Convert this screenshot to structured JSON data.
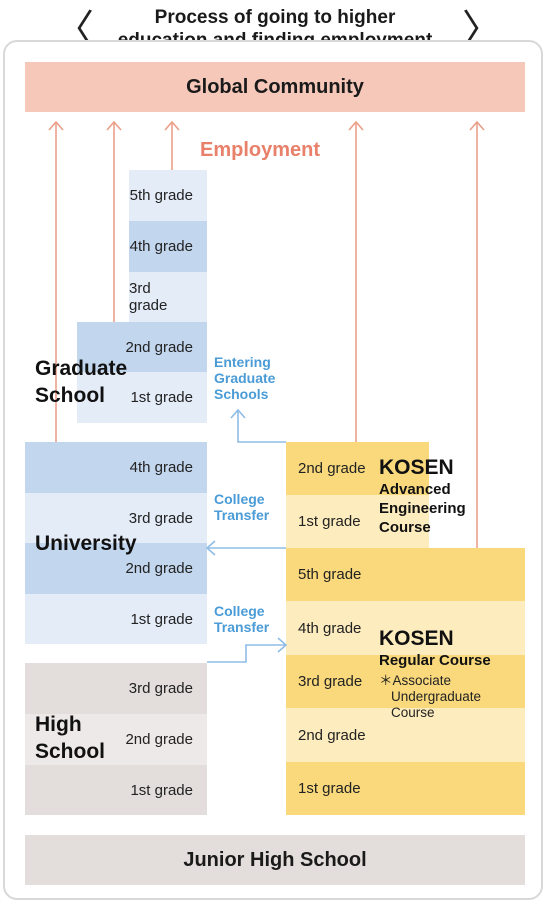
{
  "header": {
    "title_line1": "Process of going to higher",
    "title_line2": "education and finding employment",
    "left_chevron": "〈",
    "right_chevron": "〉"
  },
  "top_bar": {
    "label": "Global Community"
  },
  "bottom_bar": {
    "label": "Junior High School"
  },
  "employment": {
    "label": "Employment"
  },
  "graduate_school": {
    "label_line1": "Graduate",
    "label_line2": "School",
    "grades": [
      "5th grade",
      "4th grade",
      "3rd grade",
      "2nd grade",
      "1st grade"
    ]
  },
  "university": {
    "label": "University",
    "grades": [
      "4th grade",
      "3rd grade",
      "2nd grade",
      "1st grade"
    ]
  },
  "high_school": {
    "label_line1": "High",
    "label_line2": "School",
    "grades": [
      "3rd grade",
      "2nd grade",
      "1st grade"
    ]
  },
  "kosen_advanced": {
    "title": "KOSEN",
    "subtitle_line1": "Advanced",
    "subtitle_line2": "Engineering",
    "subtitle_line3": "Course",
    "grades": [
      "2nd grade",
      "1st grade"
    ]
  },
  "kosen_regular": {
    "title": "KOSEN",
    "subtitle": "Regular Course",
    "note_line1": "＊Associate",
    "note_line2": "Undergraduate",
    "note_line3": "Course",
    "grades": [
      "5th grade",
      "4th grade",
      "3rd grade",
      "2nd grade",
      "1st grade"
    ]
  },
  "transitions": {
    "entering_graduate_line1": "Entering",
    "entering_graduate_line2": "Graduate",
    "entering_graduate_line3": "Schools",
    "college_transfer_1_line1": "College",
    "college_transfer_1_line2": "Transfer",
    "college_transfer_2_line1": "College",
    "college_transfer_2_line2": "Transfer"
  },
  "colors": {
    "salmon": "#f5c8b9",
    "arrow": "#eba08a",
    "employment_text": "#e8806a",
    "blue_dark": "#c2d6ee",
    "blue_light": "#e4ecf8",
    "gray_dark": "#e3dedc",
    "gray_light": "#ede9e8",
    "yellow_dark": "#f9d97c",
    "yellow_light": "#fdecbd",
    "transfer_blue": "#4a9bd6"
  }
}
